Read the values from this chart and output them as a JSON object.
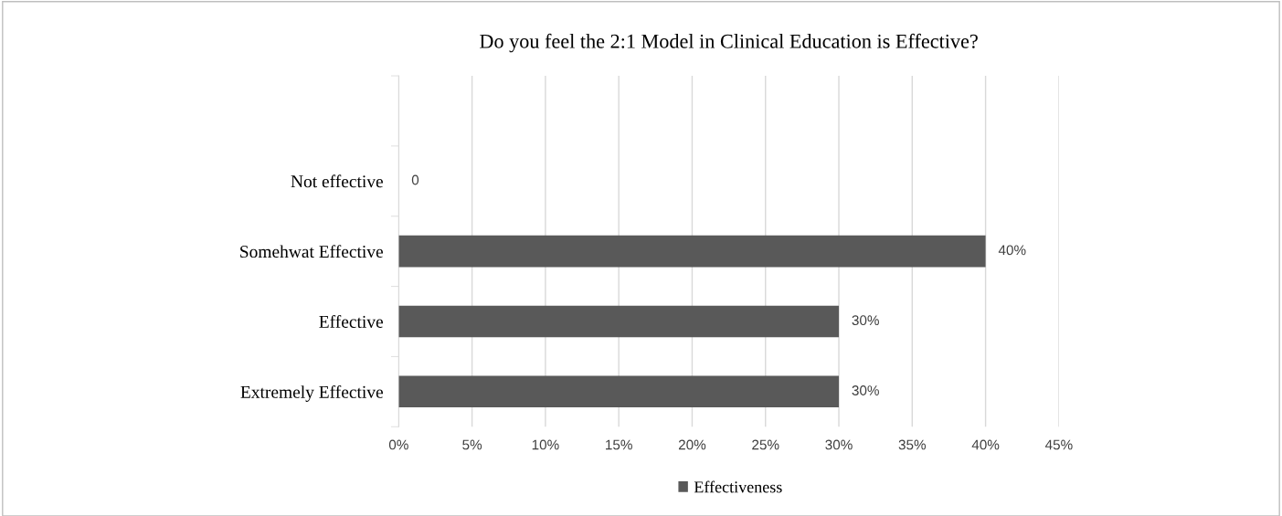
{
  "chart_data": {
    "type": "bar",
    "orientation": "horizontal",
    "title": "Do you feel the 2:1 Model in Clinical Education is Effective?",
    "categories": [
      null,
      "Not effective",
      "Somehwat Effective",
      "Effective",
      "Extremely Effective"
    ],
    "series": [
      {
        "name": "Effectiveness",
        "color": "#595959",
        "values": [
          null,
          0,
          40,
          30,
          30
        ],
        "value_labels": [
          null,
          "0",
          "40%",
          "30%",
          "30%"
        ]
      }
    ],
    "xlim": [
      0,
      45
    ],
    "xticks": [
      {
        "value": 0,
        "label": "0%"
      },
      {
        "value": 5,
        "label": "5%"
      },
      {
        "value": 10,
        "label": "10%"
      },
      {
        "value": 15,
        "label": "15%"
      },
      {
        "value": 20,
        "label": "20%"
      },
      {
        "value": 25,
        "label": "25%"
      },
      {
        "value": 30,
        "label": "30%"
      },
      {
        "value": 35,
        "label": "35%"
      },
      {
        "value": 40,
        "label": "40%"
      },
      {
        "value": 45,
        "label": "45%"
      }
    ],
    "grid": "x",
    "legend": "bottom"
  }
}
